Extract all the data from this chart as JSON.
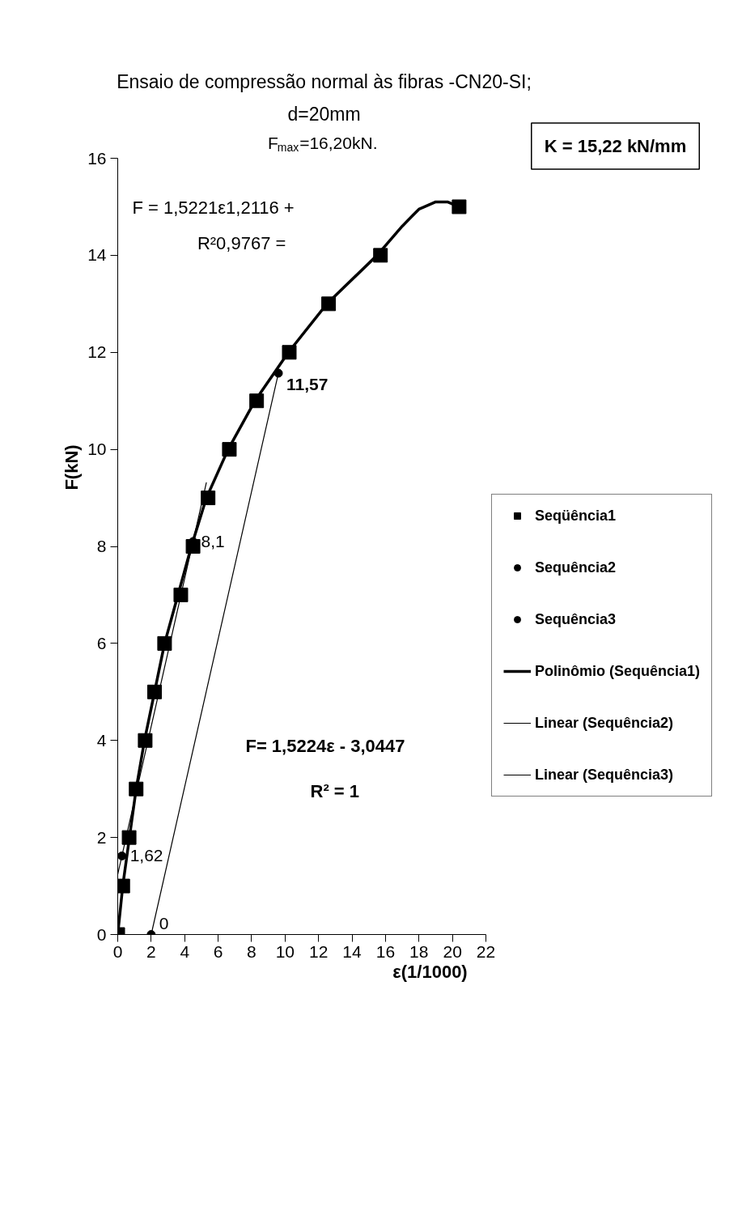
{
  "chart_data": {
    "type": "scatter",
    "title": "Ensaio de compressão normal às fibras -CN20-SI;\nd=20mm",
    "subtitle": "F$_{max}$=16,20kN.",
    "xlabel": "ε(1/1000)",
    "ylabel": "F(kN)",
    "xlim": [
      0,
      22
    ],
    "xticks": [
      0,
      2,
      4,
      6,
      8,
      10,
      12,
      14,
      16,
      18,
      20,
      22
    ],
    "ylim": [
      0,
      16
    ],
    "yticks": [
      0,
      2,
      4,
      6,
      8,
      10,
      12,
      14,
      16
    ],
    "grid": false,
    "legend": "right",
    "series": [
      {
        "name": "Seqüência1",
        "color": "#000000",
        "marker": "square",
        "x": [
          0,
          0.3,
          0.68,
          1.1,
          1.64,
          2.2,
          2.8,
          3.77,
          4.5,
          5.4,
          6.67,
          8.3,
          10.25,
          12.6,
          15.7,
          20.4
        ],
        "values": [
          0,
          1,
          2,
          3,
          4,
          5,
          6,
          7,
          8,
          9,
          10,
          11,
          12,
          13,
          14,
          15
        ]
      },
      {
        "name": "Sequência2",
        "color": "#000000",
        "marker": "circle",
        "x": [
          2.0,
          9.6
        ],
        "values": [
          0,
          11.57
        ],
        "value_labels": [
          "0",
          "11,57"
        ]
      },
      {
        "name": "Sequência3",
        "color": "#000000",
        "marker": "circle",
        "x": [
          0.25,
          4.5
        ],
        "values": [
          1.62,
          8.1
        ],
        "value_labels": [
          "1,62",
          "8,1"
        ]
      },
      {
        "name": "Polinômio (Sequência1)",
        "type": "line",
        "color": "#000000",
        "marker": "none",
        "x": [
          0,
          0.3,
          0.7,
          1.1,
          1.6,
          2.2,
          2.8,
          3.6,
          4.4,
          5.3,
          6.6,
          8.2,
          10.2,
          12.5,
          15.5,
          17,
          18,
          19,
          19.7,
          20.4
        ],
        "values": [
          0,
          1,
          2,
          3,
          4,
          5,
          6,
          7,
          8,
          9,
          10,
          11,
          12,
          13,
          14,
          14.6,
          14.95,
          15.1,
          15.1,
          15
        ]
      },
      {
        "name": "Linear (Sequência2)",
        "type": "line",
        "color": "#000000",
        "marker": "none",
        "x": [
          2.0,
          9.6
        ],
        "values": [
          0,
          11.57
        ]
      },
      {
        "name": "Linear (Sequência3)",
        "type": "line",
        "color": "#000000",
        "marker": "none",
        "x": [
          0,
          5.3
        ],
        "values": [
          1.24,
          9.32
        ]
      }
    ],
    "annotations": [
      "F = 1,5221ε1,2116 +",
      "R²0,9767 =",
      "F= 1,5224ε - 3,0447",
      "R² = 1",
      "K = 15,22 kN/mm"
    ]
  }
}
